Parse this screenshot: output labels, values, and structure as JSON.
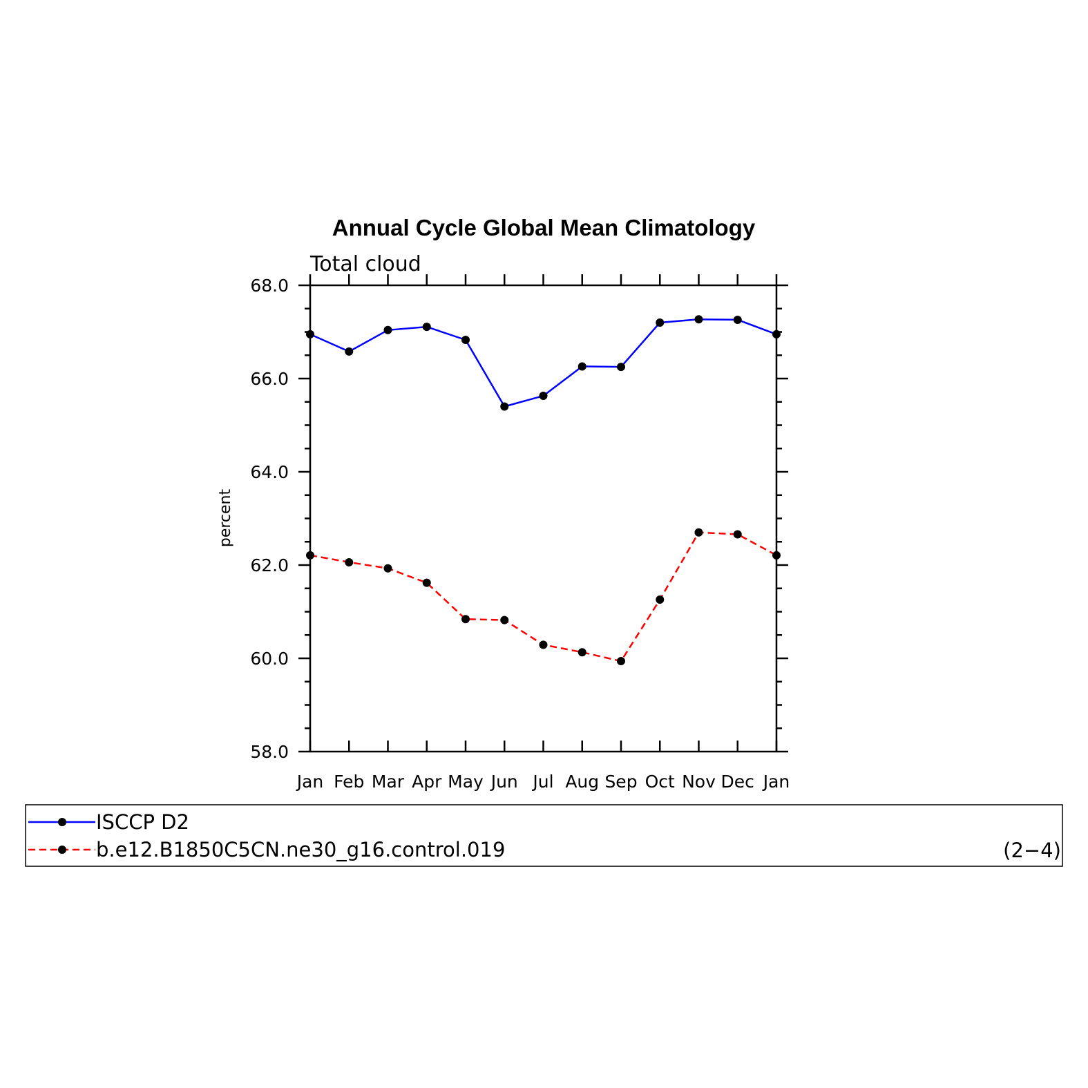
{
  "chart_data": {
    "type": "line",
    "title": "Annual Cycle Global Mean Climatology",
    "subtitle": "Total cloud",
    "ylabel": "percent",
    "xlabel": "",
    "categories": [
      "Jan",
      "Feb",
      "Mar",
      "Apr",
      "May",
      "Jun",
      "Jul",
      "Aug",
      "Sep",
      "Oct",
      "Nov",
      "Dec",
      "Jan"
    ],
    "ylim": [
      58.0,
      68.0
    ],
    "yticks": [
      "58.0",
      "60.0",
      "62.0",
      "64.0",
      "66.0",
      "68.0"
    ],
    "series": [
      {
        "name": "ISCCP D2",
        "color": "#0000ff",
        "dash": "solid",
        "marker": "dot",
        "values": [
          66.95,
          66.58,
          67.04,
          67.11,
          66.83,
          65.4,
          65.63,
          66.26,
          66.25,
          67.2,
          67.27,
          67.26,
          66.95
        ]
      },
      {
        "name": "b.e12.B1850C5CN.ne30_g16.control.019",
        "color": "#ff0000",
        "dash": "dashed",
        "marker": "dot",
        "values": [
          62.21,
          62.06,
          61.93,
          61.62,
          60.84,
          60.82,
          60.29,
          60.13,
          59.94,
          61.26,
          62.7,
          62.66,
          62.21
        ]
      }
    ],
    "grid": false,
    "legend": "bottom",
    "legend_note": "(2−4)"
  }
}
